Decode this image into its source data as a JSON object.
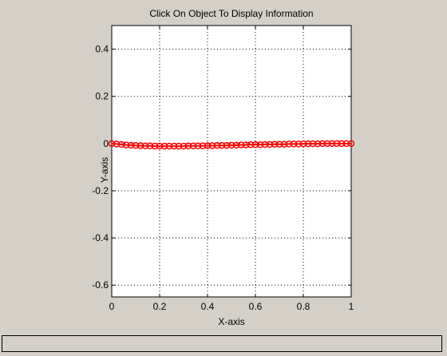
{
  "figure": {
    "title": "Click On Object To Display Information",
    "status_text": ""
  },
  "chart_data": {
    "type": "scatter",
    "title": "Click On Object To Display Information",
    "xlabel": "X-axis",
    "ylabel": "Y-axis",
    "xlim": [
      0,
      1
    ],
    "ylim": [
      -0.65,
      0.5
    ],
    "xticks": [
      "0",
      "0.2",
      "0.4",
      "0.6",
      "0.8",
      "1"
    ],
    "yticks": [
      "0.4",
      "0.2",
      "0",
      "-0.2",
      "-0.4",
      "-0.6"
    ],
    "grid": true,
    "series": [
      {
        "color": "#ff0000",
        "marker": "circle",
        "connected": true,
        "x": [
          0,
          0.02,
          0.04,
          0.06,
          0.08,
          0.1,
          0.12,
          0.14,
          0.16,
          0.18,
          0.2,
          0.22,
          0.24,
          0.26,
          0.28,
          0.3,
          0.32,
          0.34,
          0.36,
          0.38,
          0.4,
          0.42,
          0.44,
          0.46,
          0.48,
          0.5,
          0.52,
          0.54,
          0.56,
          0.58,
          0.6,
          0.62,
          0.64,
          0.66,
          0.68,
          0.7,
          0.72,
          0.74,
          0.76,
          0.78,
          0.8,
          0.82,
          0.84,
          0.86,
          0.88,
          0.9,
          0.92,
          0.94,
          0.96,
          0.98,
          1
        ],
        "y": [
          0,
          -0.002,
          -0.004,
          -0.006,
          -0.007,
          -0.008,
          -0.009,
          -0.01,
          -0.01,
          -0.011,
          -0.011,
          -0.011,
          -0.011,
          -0.011,
          -0.011,
          -0.011,
          -0.01,
          -0.01,
          -0.01,
          -0.01,
          -0.009,
          -0.009,
          -0.008,
          -0.008,
          -0.008,
          -0.007,
          -0.007,
          -0.006,
          -0.006,
          -0.005,
          -0.005,
          -0.005,
          -0.004,
          -0.004,
          -0.003,
          -0.003,
          -0.003,
          -0.002,
          -0.002,
          -0.002,
          -0.001,
          -0.001,
          -0.001,
          -0.001,
          0,
          0,
          0,
          0,
          0,
          0,
          0
        ]
      }
    ]
  }
}
